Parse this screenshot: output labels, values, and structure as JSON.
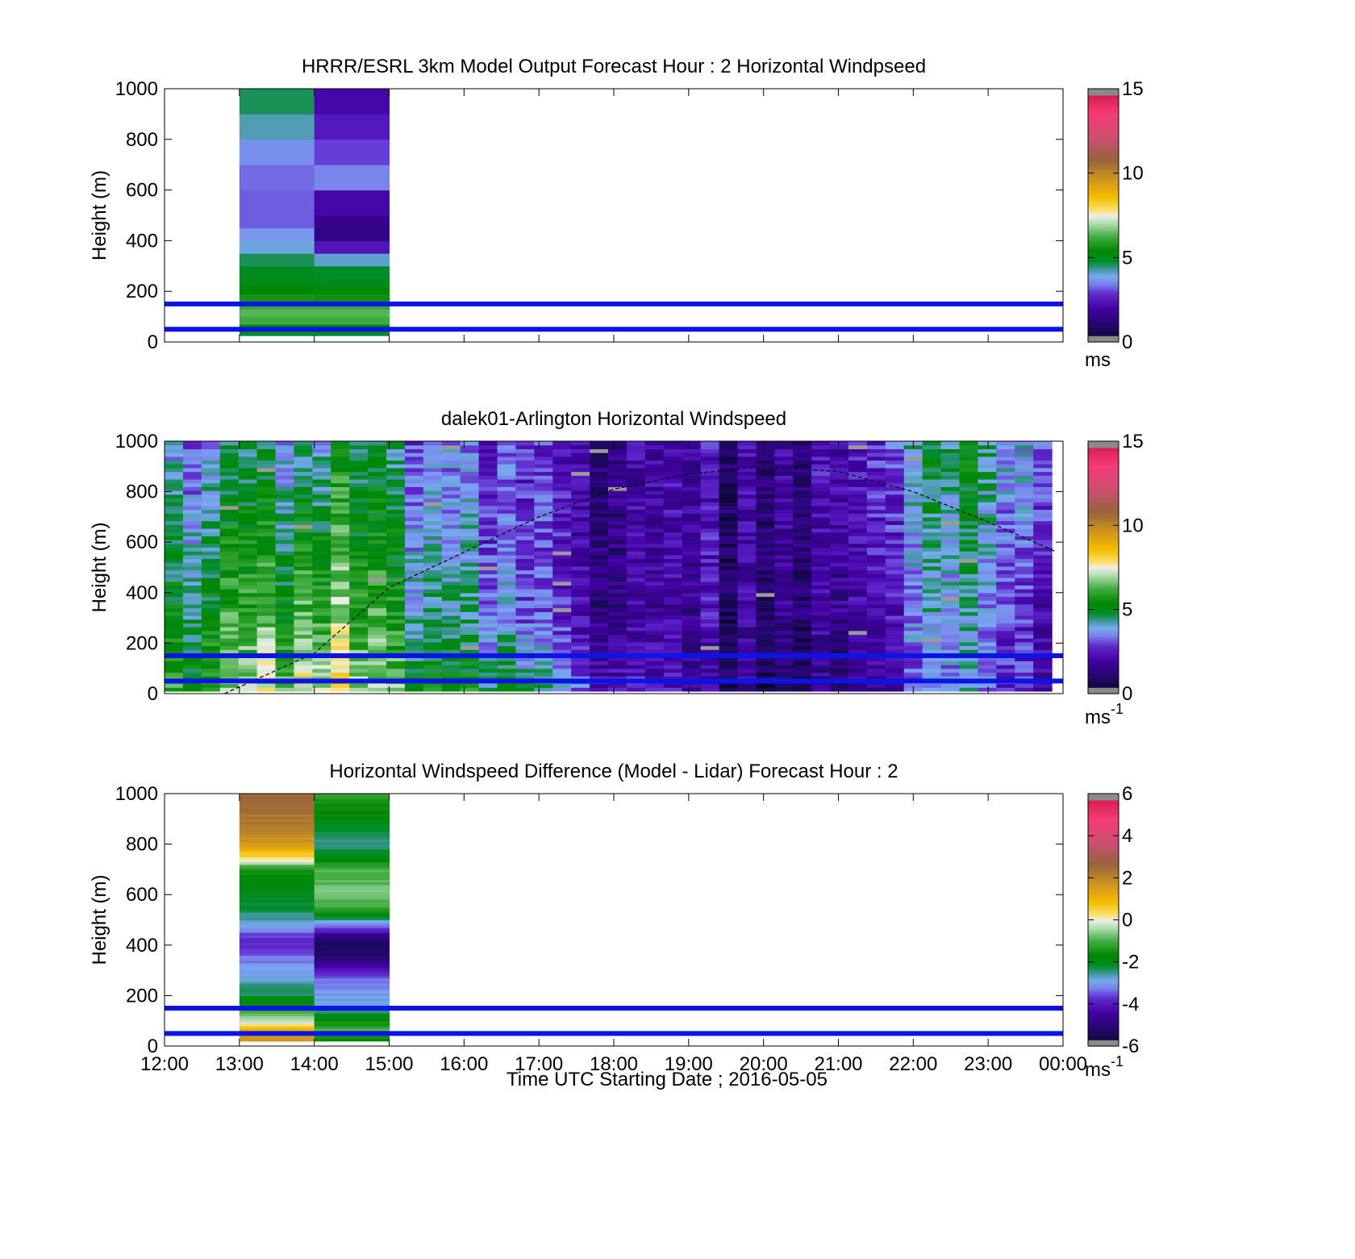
{
  "figure": {
    "x_tick_labels": [
      "12:00",
      "13:00",
      "14:00",
      "15:00",
      "16:00",
      "17:00",
      "18:00",
      "19:00",
      "20:00",
      "21:00",
      "22:00",
      "23:00",
      "00:00"
    ],
    "x_axis_label": "Time UTC  Starting Date ; 2016-05-05",
    "reference_line_heights_m": [
      50,
      150
    ],
    "reference_line_color": "#0a14e6"
  },
  "chart_data": [
    {
      "type": "heatmap",
      "title": "HRRR/ESRL 3km Model Output   Forecast Hour : 2 Horizontal Windpseed",
      "ylabel": "Height (m)",
      "ylim": [
        0,
        1000
      ],
      "y_ticks": [
        "0",
        "200",
        "400",
        "600",
        "800",
        "1000"
      ],
      "xlim_hours": [
        12,
        24
      ],
      "colorbar": {
        "range": [
          0,
          15
        ],
        "ticks": [
          "0",
          "5",
          "10",
          "15"
        ],
        "unit_label": "ms"
      },
      "columns": [
        {
          "hour_start": 13,
          "hour_end": 14,
          "cells": [
            {
              "h0": 25,
              "h1": 40,
              "v": 4.8
            },
            {
              "h0": 40,
              "h1": 70,
              "v": 5.2
            },
            {
              "h0": 70,
              "h1": 100,
              "v": 6.2
            },
            {
              "h0": 100,
              "h1": 130,
              "v": 6.4
            },
            {
              "h0": 130,
              "h1": 160,
              "v": 6.1
            },
            {
              "h0": 160,
              "h1": 190,
              "v": 5.7
            },
            {
              "h0": 190,
              "h1": 220,
              "v": 5.4
            },
            {
              "h0": 220,
              "h1": 250,
              "v": 5.1
            },
            {
              "h0": 250,
              "h1": 300,
              "v": 4.9
            },
            {
              "h0": 300,
              "h1": 350,
              "v": 4.6
            },
            {
              "h0": 350,
              "h1": 400,
              "v": 4.0
            },
            {
              "h0": 400,
              "h1": 450,
              "v": 3.7
            },
            {
              "h0": 450,
              "h1": 600,
              "v": 3.2
            },
            {
              "h0": 600,
              "h1": 700,
              "v": 3.3
            },
            {
              "h0": 700,
              "h1": 800,
              "v": 3.6
            },
            {
              "h0": 800,
              "h1": 900,
              "v": 4.2
            },
            {
              "h0": 900,
              "h1": 1000,
              "v": 4.6
            }
          ]
        },
        {
          "hour_start": 14,
          "hour_end": 15,
          "cells": [
            {
              "h0": 25,
              "h1": 40,
              "v": 4.8
            },
            {
              "h0": 40,
              "h1": 70,
              "v": 5.4
            },
            {
              "h0": 70,
              "h1": 100,
              "v": 6.2
            },
            {
              "h0": 100,
              "h1": 130,
              "v": 6.4
            },
            {
              "h0": 130,
              "h1": 160,
              "v": 6.1
            },
            {
              "h0": 160,
              "h1": 190,
              "v": 5.6
            },
            {
              "h0": 190,
              "h1": 220,
              "v": 5.3
            },
            {
              "h0": 220,
              "h1": 250,
              "v": 5.0
            },
            {
              "h0": 250,
              "h1": 300,
              "v": 4.8
            },
            {
              "h0": 300,
              "h1": 350,
              "v": 4.1
            },
            {
              "h0": 350,
              "h1": 400,
              "v": 2.4
            },
            {
              "h0": 400,
              "h1": 450,
              "v": 1.5
            },
            {
              "h0": 450,
              "h1": 500,
              "v": 1.6
            },
            {
              "h0": 500,
              "h1": 600,
              "v": 2.1
            },
            {
              "h0": 600,
              "h1": 700,
              "v": 3.5
            },
            {
              "h0": 700,
              "h1": 800,
              "v": 3.0
            },
            {
              "h0": 800,
              "h1": 900,
              "v": 2.5
            },
            {
              "h0": 900,
              "h1": 1000,
              "v": 2.1
            }
          ]
        }
      ]
    },
    {
      "type": "heatmap",
      "title": "dalek01-Arlington  Horizontal Windspeed",
      "ylabel": "Height (m)",
      "ylim": [
        0,
        1000
      ],
      "y_ticks": [
        "0",
        "200",
        "400",
        "600",
        "800",
        "1000"
      ],
      "xlim_hours": [
        12,
        24
      ],
      "data_extent_hours": [
        12,
        23.85
      ],
      "colorbar": {
        "range": [
          0,
          15
        ],
        "ticks": [
          "0",
          "5",
          "10",
          "15"
        ],
        "unit_label": "ms",
        "unit_superscript": "-1"
      },
      "time_profile": {
        "hours": [
          12,
          13,
          14,
          14.5,
          15,
          16,
          17,
          18,
          19,
          20,
          21,
          22,
          23,
          23.85
        ],
        "surface": [
          5.6,
          6.2,
          7.6,
          7.3,
          6.0,
          5.6,
          4.6,
          2.2,
          1.6,
          1.3,
          1.6,
          3.0,
          3.4,
          2.7
        ],
        "mid": [
          5.0,
          5.4,
          6.4,
          6.3,
          5.2,
          4.5,
          3.0,
          1.3,
          1.7,
          1.6,
          2.1,
          3.4,
          3.6,
          2.6
        ],
        "top": [
          3.4,
          4.0,
          4.2,
          4.8,
          3.8,
          3.6,
          2.6,
          1.3,
          1.9,
          1.8,
          2.6,
          4.2,
          4.6,
          4.0
        ]
      },
      "missing_data_color": "#9a9a9a",
      "boundary_layer_curve": {
        "hours": [
          12.8,
          14,
          15,
          16,
          17,
          18,
          19,
          20,
          21,
          22,
          23,
          24
        ],
        "heights": [
          0,
          160,
          420,
          560,
          700,
          810,
          870,
          900,
          880,
          800,
          680,
          550
        ]
      }
    },
    {
      "type": "heatmap",
      "title": "Horizontal Windspeed Difference (Model - Lidar) Forecast Hour : 2",
      "ylabel": "Height (m)",
      "ylim": [
        0,
        1000
      ],
      "y_ticks": [
        "0",
        "200",
        "400",
        "600",
        "800",
        "1000"
      ],
      "xlim_hours": [
        12,
        24
      ],
      "colorbar": {
        "range": [
          -6,
          6
        ],
        "ticks": [
          "-6",
          "-4",
          "-2",
          "0",
          "2",
          "4",
          "6"
        ],
        "unit_label": "ms",
        "unit_superscript": "-1"
      },
      "columns": [
        {
          "hour_start": 13,
          "hour_end": 14,
          "profile_heights": [
            20,
            60,
            100,
            150,
            200,
            280,
            350,
            420,
            500,
            600,
            700,
            740,
            800,
            880,
            1000
          ],
          "profile_values": [
            1.6,
            1.3,
            -0.3,
            -1.2,
            -2.3,
            -2.8,
            -3.3,
            -3.9,
            -2.6,
            -2.0,
            -1.6,
            0.2,
            1.7,
            2.2,
            2.6
          ]
        },
        {
          "hour_start": 14,
          "hour_end": 15,
          "profile_heights": [
            20,
            60,
            100,
            150,
            200,
            280,
            320,
            360,
            420,
            500,
            550,
            600,
            700,
            800,
            880,
            1000
          ],
          "profile_values": [
            -1.8,
            -1.0,
            -1.5,
            -2.6,
            -3.0,
            -3.5,
            -4.3,
            -5.2,
            -5.3,
            -2.6,
            -1.0,
            -0.6,
            -1.0,
            -2.5,
            -1.9,
            -1.2
          ]
        }
      ]
    }
  ]
}
